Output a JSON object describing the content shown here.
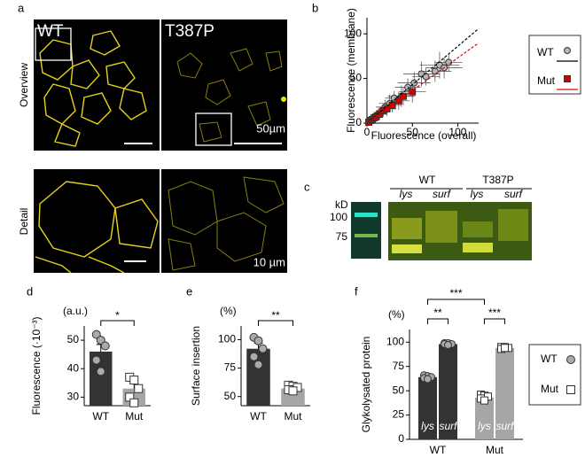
{
  "panel_a": {
    "letter": "a",
    "columns": [
      "WT",
      "T387P"
    ],
    "rows": [
      "Overview",
      "Detail"
    ],
    "scale_bars": [
      "50µm",
      "10 µm"
    ]
  },
  "panel_c": {
    "letter": "c",
    "unit": "kD",
    "markers": [
      100,
      75
    ],
    "groups": [
      "WT",
      "T387P"
    ],
    "lanes": [
      "lys",
      "surf",
      "lys",
      "surf"
    ]
  },
  "chart_data": [
    {
      "type": "scatter",
      "panel": "b",
      "x_label": "Fluorescence (overall)",
      "y_label": "Fluorescence (membrane)",
      "xlim": [
        0,
        123
      ],
      "xticks": [
        0,
        50,
        100
      ],
      "ylim": [
        0,
        118
      ],
      "yticks": [
        0,
        50,
        100
      ],
      "series": [
        {
          "name": "WT",
          "color": "#b5b5b5",
          "line_color": "#000000",
          "marker": "circle",
          "fit_slope": 0.86,
          "x": [
            5,
            10,
            15,
            20,
            25,
            30,
            38,
            45,
            52,
            60,
            65,
            75,
            80,
            85,
            90
          ],
          "values": [
            4,
            8,
            12,
            18,
            22,
            28,
            30,
            40,
            45,
            55,
            52,
            58,
            65,
            62,
            68
          ],
          "xerr": [
            4,
            6,
            8,
            10,
            12,
            10,
            15,
            14,
            18,
            20,
            15,
            18,
            22,
            20,
            15
          ],
          "yerr": [
            3,
            5,
            6,
            8,
            10,
            8,
            12,
            10,
            12,
            14,
            10,
            12,
            15,
            12,
            10
          ]
        },
        {
          "name": "Mut",
          "color": "#d40000",
          "line_color": "#e00000",
          "marker": "square",
          "fit_slope": 0.73,
          "x": [
            2,
            4,
            6,
            8,
            10,
            14,
            18,
            22,
            28,
            35,
            40,
            50
          ],
          "values": [
            1,
            3,
            4,
            6,
            7,
            10,
            14,
            16,
            20,
            25,
            30,
            35
          ],
          "xerr": [
            2,
            3,
            4,
            5,
            6,
            8,
            8,
            10,
            10,
            12,
            12,
            15
          ],
          "yerr": [
            1,
            2,
            3,
            4,
            4,
            6,
            6,
            8,
            8,
            10,
            10,
            12
          ]
        }
      ]
    },
    {
      "type": "bar",
      "panel": "d",
      "y_label": "Fluorescence (·10⁻³)",
      "unit": "(a.u.)",
      "categories": [
        "WT",
        "Mut"
      ],
      "values": [
        46,
        33
      ],
      "errors": [
        2.5,
        2
      ],
      "points": [
        [
          52,
          50,
          48,
          43,
          39
        ],
        [
          37,
          36,
          33,
          30,
          28
        ]
      ],
      "colors": [
        "#333333",
        "#a6a6a6"
      ],
      "markers": [
        "circle",
        "square"
      ],
      "ylim": [
        27,
        55
      ],
      "yticks": [
        30,
        40,
        50
      ],
      "annotations": [
        "*"
      ]
    },
    {
      "type": "bar",
      "panel": "e",
      "y_label": "Surface insertion",
      "unit": "(%)",
      "categories": [
        "WT",
        "Mut"
      ],
      "values": [
        92,
        57
      ],
      "errors": [
        5,
        1.2
      ],
      "points": [
        [
          102,
          99,
          92,
          85,
          78
        ],
        [
          60,
          59,
          58,
          56,
          55
        ]
      ],
      "colors": [
        "#333333",
        "#a6a6a6"
      ],
      "markers": [
        "circle",
        "square"
      ],
      "ylim": [
        42,
        112
      ],
      "yticks": [
        50,
        75,
        100
      ],
      "annotations": [
        "**"
      ]
    },
    {
      "type": "grouped_bar",
      "panel": "f",
      "y_label": "Glykolysated protein",
      "unit": "(%)",
      "categories": [
        "WT",
        "Mut"
      ],
      "series": [
        {
          "name": "lys",
          "values": [
            64,
            43
          ],
          "errors": [
            2,
            2.5
          ],
          "points": [
            [
              66,
              65,
              64,
              63,
              62
            ],
            [
              46,
              45,
              44,
              42,
              40
            ]
          ]
        },
        {
          "name": "surf",
          "values": [
            98,
            94
          ],
          "errors": [
            1,
            1
          ],
          "points": [
            [
              99,
              99,
              98,
              98,
              97
            ],
            [
              95,
              95,
              94,
              93,
              94
            ]
          ]
        }
      ],
      "colors": [
        "#333333",
        "#a6a6a6"
      ],
      "markers": [
        "circle",
        "square"
      ],
      "ylim": [
        0,
        113
      ],
      "yticks": [
        0,
        25,
        50,
        75,
        100
      ],
      "annotations": [
        "**",
        "***",
        "***"
      ]
    }
  ]
}
